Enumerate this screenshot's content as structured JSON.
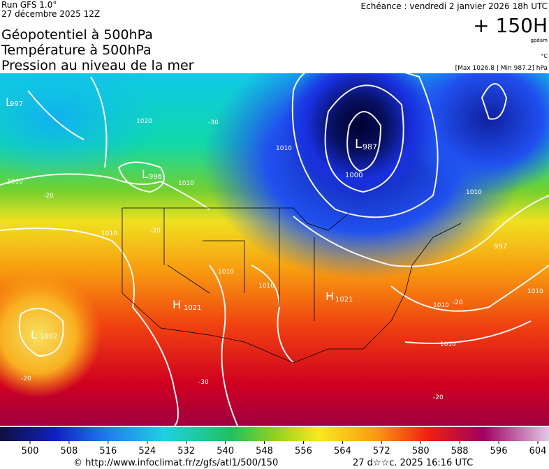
{
  "header": {
    "run": "Run GFS 1.0°",
    "run_date": "27 décembre 2025 12Z",
    "valid": "Echéance : vendredi 2 janvier 2026 18h UTC",
    "lead": "+ 150H",
    "unit_geo": "gpdam",
    "titles": [
      "Géopotentiel à 500hPa",
      "Température à 500hPa",
      "Pression au niveau de la mer"
    ],
    "unit_temp": "°C",
    "pressure_range": "[Max 1026.8 | Min 987.2] hPa"
  },
  "map": {
    "labels": [
      "L",
      "997",
      "L",
      "996",
      "1010",
      "1020",
      "1010",
      "-30",
      "L",
      "987",
      "1000",
      "1010",
      "1010",
      "1010",
      "997",
      "1010",
      "H",
      "1021",
      "H",
      "1021",
      "1010",
      "1010",
      "1010",
      "L",
      "1002",
      "1010",
      "-20",
      "-20",
      "-20",
      "-20",
      "-20",
      "-30"
    ]
  },
  "legend": {
    "ticks": [
      500,
      508,
      516,
      524,
      532,
      540,
      548,
      556,
      564,
      572,
      580,
      588,
      596,
      604
    ]
  },
  "footer": {
    "url": "© http://www.infoclimat.fr/z/gfs/atl1/500/150",
    "timestamp": "27 d☆☆c. 2025 16:16 UTC"
  }
}
